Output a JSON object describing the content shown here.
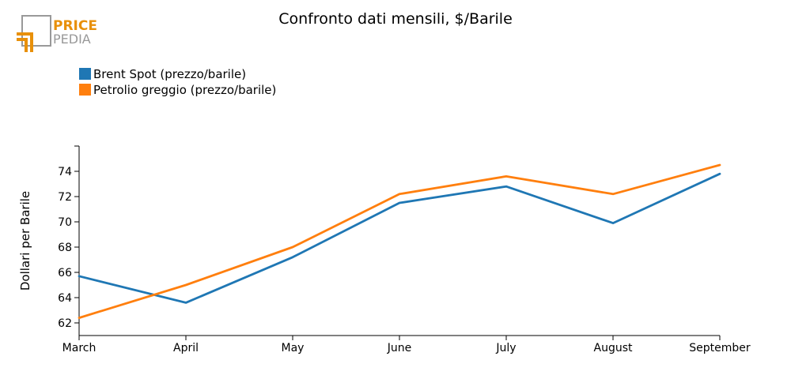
{
  "logo": {
    "line1": "PRICE",
    "line2": "PEDIA",
    "accent_color": "#E8900A",
    "gray_color": "#999999"
  },
  "chart_data": {
    "type": "line",
    "title": "Confronto dati mensili, $/Barile",
    "xlabel": "",
    "ylabel": "Dollari per Barile",
    "categories": [
      "March",
      "April",
      "May",
      "June",
      "July",
      "August",
      "September"
    ],
    "ylim": [
      61,
      76
    ],
    "yticks": [
      62,
      64,
      66,
      68,
      70,
      72,
      74
    ],
    "grid": false,
    "legend_position": "top-left",
    "series": [
      {
        "name": "Brent Spot (prezzo/barile)",
        "color": "#1F77B4",
        "values": [
          65.7,
          63.6,
          67.2,
          71.5,
          72.8,
          69.9,
          73.8
        ]
      },
      {
        "name": "Petrolio greggio (prezzo/barile)",
        "color": "#FF7F0E",
        "values": [
          62.4,
          65.0,
          68.0,
          72.2,
          73.6,
          72.2,
          74.5
        ]
      }
    ]
  }
}
